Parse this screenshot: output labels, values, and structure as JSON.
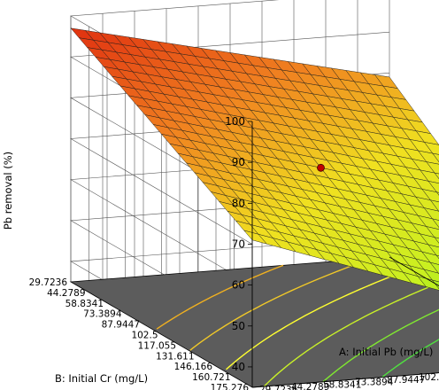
{
  "chart_data": {
    "type": "surface3d",
    "title": "",
    "zlabel": "Pb removal (%)",
    "xlabel": "A: Initial Pb (mg/L)",
    "ylabel": "B: Initial Cr (mg/L)",
    "x_ticks": [
      "29.7236",
      "44.2789",
      "58.8341",
      "73.3894",
      "87.9447",
      "102.5",
      "117.055",
      "131.611",
      "146.166",
      "160.721",
      "175.276"
    ],
    "y_ticks": [
      "29.7236",
      "44.2789",
      "58.8341",
      "73.3894",
      "87.9447",
      "102.5",
      "117.055",
      "131.611",
      "146.166",
      "160.721",
      "175.276"
    ],
    "z_ticks": [
      "40",
      "50",
      "60",
      "70",
      "80",
      "90",
      "100"
    ],
    "xlim": [
      29.7236,
      175.276
    ],
    "ylim": [
      29.7236,
      175.276
    ],
    "zlim": [
      35,
      100
    ],
    "corner_values": {
      "a_min_b_min": 97,
      "a_max_b_min": 79,
      "a_min_b_max": 71,
      "a_max_b_max": 44
    },
    "colormap": [
      "#10d010",
      "#c8f020",
      "#f0e020",
      "#f08020",
      "#e03010"
    ],
    "design_point": {
      "a": 102.5,
      "b": 102.5,
      "z": 79
    },
    "contour_colors": [
      "#f0b020",
      "#ffff30",
      "#40e040"
    ],
    "grid": true
  }
}
